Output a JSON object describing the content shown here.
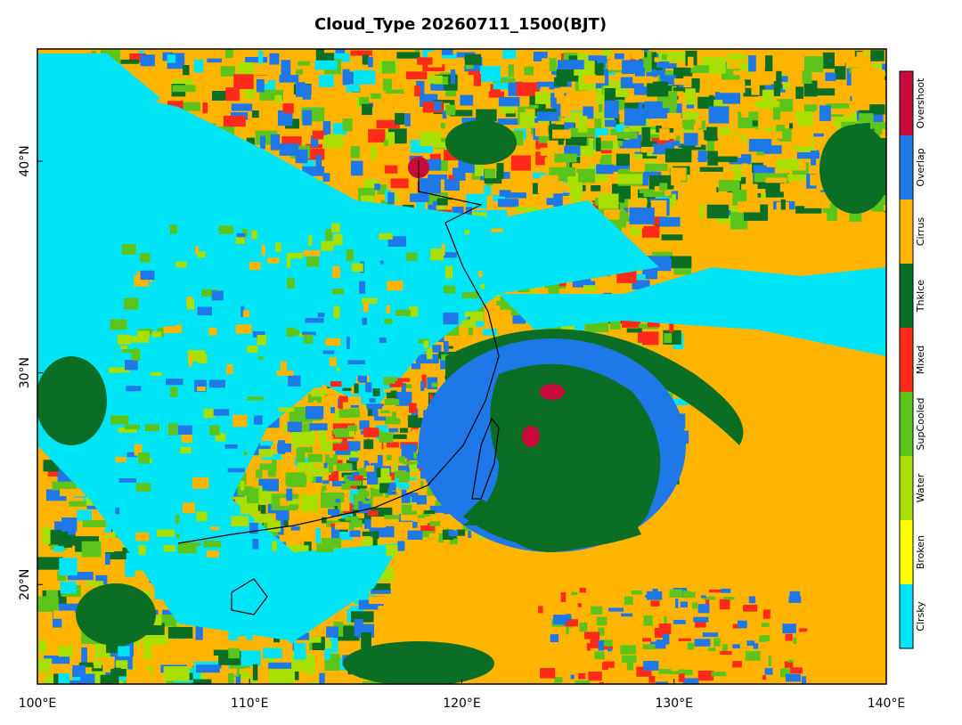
{
  "chart_data": {
    "type": "map",
    "title": "Cloud_Type 20260711_1500(BJT)",
    "xlim": [
      100,
      140
    ],
    "ylim": [
      15.3,
      45.3
    ],
    "xticks": [
      {
        "value": 100,
        "label": "100°E"
      },
      {
        "value": 110,
        "label": "110°E"
      },
      {
        "value": 120,
        "label": "120°E"
      },
      {
        "value": 130,
        "label": "130°E"
      },
      {
        "value": 140,
        "label": "140°E"
      }
    ],
    "yticks": [
      {
        "value": 20,
        "label": "20°N"
      },
      {
        "value": 30,
        "label": "30°N"
      },
      {
        "value": 40,
        "label": "40°N"
      }
    ],
    "legend": [
      {
        "name": "Clrsky",
        "color": "#00e5f5"
      },
      {
        "name": "Broken",
        "color": "#ffff00"
      },
      {
        "name": "Water",
        "color": "#a8df00"
      },
      {
        "name": "SupCooled",
        "color": "#5cc41a"
      },
      {
        "name": "Mixed",
        "color": "#ff2a1a"
      },
      {
        "name": "ThkIce",
        "color": "#0a6e24"
      },
      {
        "name": "Cirrus",
        "color": "#ffb400"
      },
      {
        "name": "Overlap",
        "color": "#1f78e8"
      },
      {
        "name": "Overshoot",
        "color": "#c80a3c"
      }
    ]
  }
}
